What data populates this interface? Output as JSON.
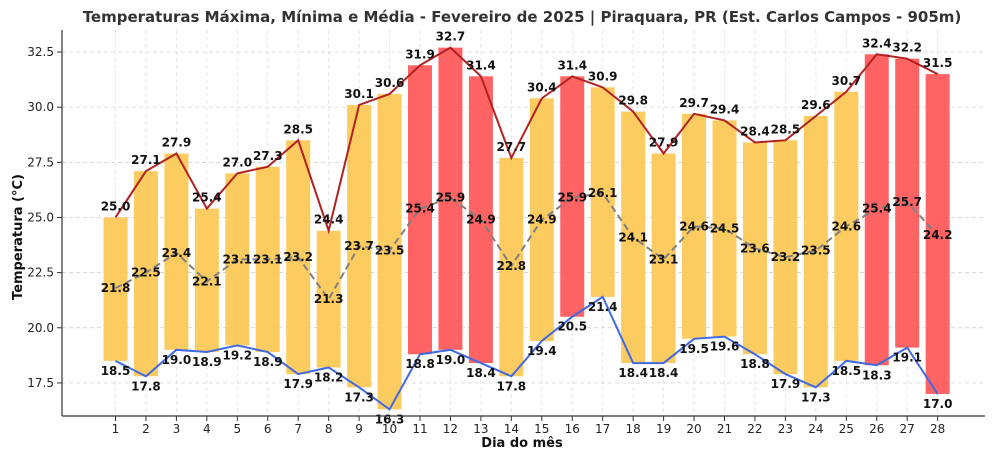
{
  "chart_data": {
    "type": "bar",
    "title": "Temperaturas Máxima, Mínima e Média - Fevereiro de 2025 | Piraquara, PR (Est. Carlos Campos - 905m)",
    "xlabel": "Dia do mês",
    "ylabel": "Temperatura (°C)",
    "categories": [
      "1",
      "2",
      "3",
      "4",
      "5",
      "6",
      "7",
      "8",
      "9",
      "10",
      "11",
      "12",
      "13",
      "14",
      "15",
      "16",
      "17",
      "18",
      "19",
      "20",
      "21",
      "22",
      "23",
      "24",
      "25",
      "26",
      "27",
      "28"
    ],
    "yticks": [
      "17.5",
      "20.0",
      "22.5",
      "25.0",
      "27.5",
      "30.0",
      "32.5"
    ],
    "ylim": [
      16.0,
      33.5
    ],
    "grid": true,
    "series": [
      {
        "key": "max",
        "values": [
          25.0,
          27.1,
          27.9,
          25.4,
          27.0,
          27.3,
          28.5,
          24.4,
          30.1,
          30.6,
          31.9,
          32.7,
          31.4,
          27.7,
          30.4,
          31.4,
          30.9,
          29.8,
          27.9,
          29.7,
          29.4,
          28.4,
          28.5,
          29.6,
          30.7,
          32.4,
          32.2,
          31.5
        ]
      },
      {
        "key": "min",
        "values": [
          18.5,
          17.8,
          19.0,
          18.9,
          19.2,
          18.9,
          17.9,
          18.2,
          17.3,
          16.3,
          18.8,
          19.0,
          18.4,
          17.8,
          19.4,
          20.5,
          21.4,
          18.4,
          18.4,
          19.5,
          19.6,
          18.8,
          17.9,
          17.3,
          18.5,
          18.3,
          19.1,
          17.0
        ]
      },
      {
        "key": "mean",
        "values": [
          21.8,
          22.5,
          23.4,
          22.1,
          23.1,
          23.1,
          23.2,
          21.3,
          23.7,
          23.5,
          25.4,
          25.9,
          24.9,
          22.8,
          24.9,
          25.9,
          26.1,
          24.1,
          23.1,
          24.6,
          24.5,
          23.6,
          23.2,
          23.5,
          24.6,
          25.4,
          25.7,
          24.2
        ]
      }
    ],
    "colors": {
      "bar_normal": "#fdc650",
      "bar_hot": "#ff5252",
      "max_line": "#b22222",
      "min_line": "#4169e1",
      "mean_line": "#808080"
    },
    "hot_threshold": 31.0
  }
}
